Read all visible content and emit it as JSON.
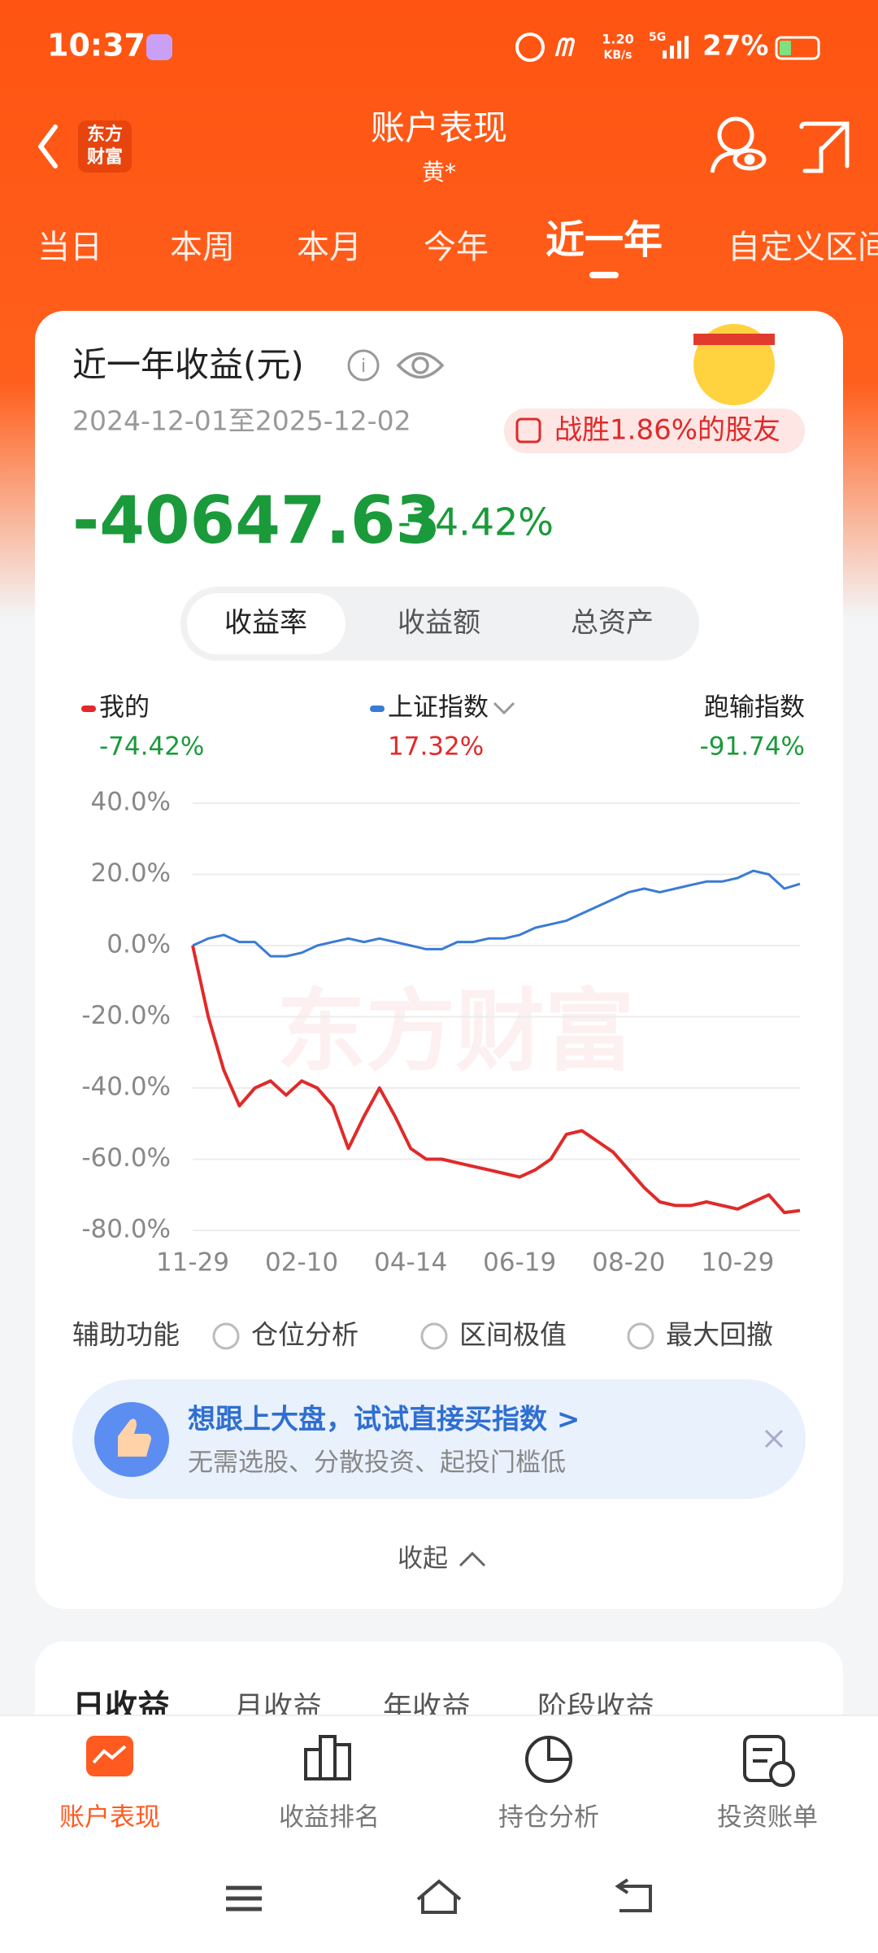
{
  "status_bar": {
    "time": "10:37",
    "speed": "1.20",
    "speed_unit": "KB/s",
    "network": "5G",
    "battery": "27%"
  },
  "header": {
    "title": "账户表现",
    "subtitle": "黄*",
    "logo_top": "东方",
    "logo_bottom": "财富"
  },
  "tabs": [
    "当日",
    "本周",
    "本月",
    "今年",
    "近一年",
    "自定义区间"
  ],
  "summary": {
    "title": "近一年收益(元)",
    "date_range": "2024-12-01至2025-12-02",
    "badge": "战胜1.86%的股友",
    "amount": "-40647.63",
    "rate": "-74.42%"
  },
  "segments": [
    "收益率",
    "收益额",
    "总资产"
  ],
  "chart_legend": {
    "values": [
      "-74.42%",
      "17.32%"
    ],
    "benchmark": "跑输指数",
    "benchmark_value": "-91.74%"
  },
  "chart_data": {
    "type": "line",
    "x": [
      "11-29",
      "12-09",
      "12-19",
      "12-30",
      "01-09",
      "01-20",
      "01-31",
      "02-10",
      "02-19",
      "02-28",
      "03-10",
      "03-19",
      "03-28",
      "04-07",
      "04-14",
      "04-23",
      "05-06",
      "05-15",
      "05-26",
      "06-04",
      "06-11",
      "06-19",
      "06-27",
      "07-08",
      "07-17",
      "07-25",
      "08-04",
      "08-12",
      "08-20",
      "08-29",
      "09-09",
      "09-18",
      "09-26",
      "10-13",
      "10-21",
      "10-29",
      "11-06",
      "11-14",
      "11-24",
      "12-02"
    ],
    "series": [
      {
        "name": "我的",
        "color": "#e02a2a",
        "values": [
          0,
          -20,
          -35,
          -45,
          -40,
          -38,
          -42,
          -38,
          -40,
          -45,
          -57,
          -48,
          -40,
          -48,
          -57,
          -60,
          -60,
          -61,
          -62,
          -63,
          -64,
          -65,
          -63,
          -60,
          -53,
          -52,
          -55,
          -58,
          -63,
          -68,
          -72,
          -73,
          -73,
          -72,
          -73,
          -74,
          -72,
          -70,
          -75,
          -74.42
        ]
      },
      {
        "name": "上证指数",
        "color": "#3a7bd5",
        "values": [
          0,
          2,
          3,
          1,
          1,
          -3,
          -3,
          -2,
          0,
          1,
          2,
          1,
          2,
          1,
          0,
          -1,
          -1,
          1,
          1,
          2,
          2,
          3,
          5,
          6,
          7,
          9,
          11,
          13,
          15,
          16,
          15,
          16,
          17,
          18,
          18,
          19,
          21,
          20,
          16,
          17.32
        ]
      }
    ],
    "ylim": [
      -80,
      40
    ],
    "yticks": [
      {
        "value": 40,
        "label": "40.0%"
      },
      {
        "value": 20,
        "label": "20.0%"
      },
      {
        "value": 0,
        "label": "0.0%"
      },
      {
        "value": -20,
        "label": "-20.0%"
      },
      {
        "value": -40,
        "label": "-40.0%"
      },
      {
        "value": -60,
        "label": "-60.0%"
      },
      {
        "value": -80,
        "label": "-80.0%"
      }
    ],
    "xticks": [
      "11-29",
      "02-10",
      "04-14",
      "06-19",
      "08-20",
      "10-29"
    ],
    "grid": true
  },
  "watermark": "东方财富",
  "tools": {
    "label": "辅助功能",
    "options": [
      "仓位分析",
      "区间极值",
      "最大回撤"
    ]
  },
  "promo": {
    "title": "想跟上大盘，试试直接买指数 >",
    "subtitle": "无需选股、分散投资、起投门槛低"
  },
  "collapse": "收起",
  "detail_tabs": [
    "日收益",
    "月收益",
    "年收益",
    "阶段收益"
  ],
  "bottom_nav": [
    "账户表现",
    "收益排名",
    "持仓分析",
    "投资账单"
  ]
}
